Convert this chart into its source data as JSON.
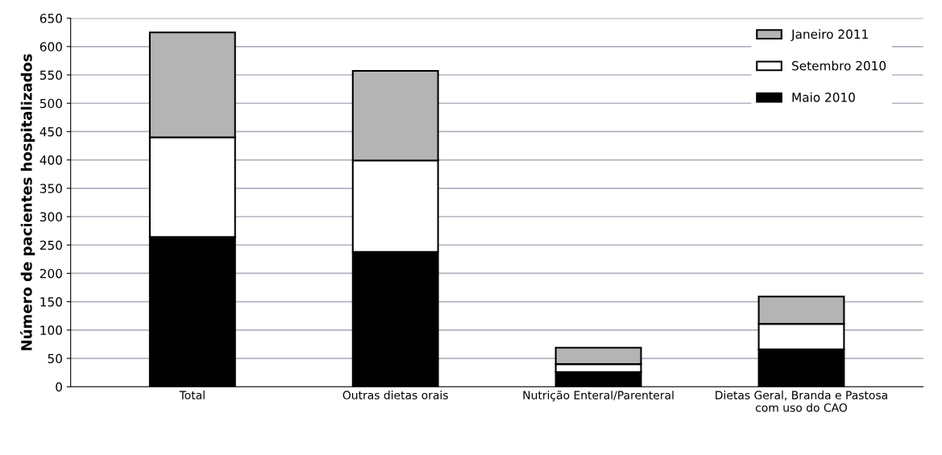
{
  "chart_data": {
    "type": "bar",
    "stacked": true,
    "ylabel": "Número de pacientes hospitalizados",
    "categories": [
      "Total",
      "Outras dietas orais",
      "Nutrição Enteral/Parenteral",
      "Dietas Geral, Branda e Pastosa\ncom uso do CAO"
    ],
    "series": [
      {
        "name": "Maio 2010",
        "color": "#000000",
        "values": [
          264,
          238,
          26,
          66
        ]
      },
      {
        "name": "Setembro 2010",
        "color": "#ffffff",
        "values": [
          176,
          161,
          14,
          45
        ]
      },
      {
        "name": "Janeiro 2011",
        "color": "#b4b4b4",
        "values": [
          185,
          158,
          29,
          48
        ]
      }
    ],
    "ylim": [
      0,
      650
    ],
    "yticks": [
      0,
      50,
      100,
      150,
      200,
      250,
      300,
      350,
      400,
      450,
      500,
      550,
      600,
      650
    ],
    "grid": "y",
    "legend": "top right"
  }
}
